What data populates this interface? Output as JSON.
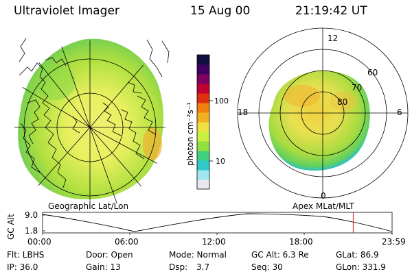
{
  "header": {
    "title": "Ultraviolet Imager",
    "date": "15 Aug 00",
    "time": "21:19:42 UT"
  },
  "colors": {
    "background": "#ffffff",
    "aurora_main": "#a8d63a",
    "aurora_bright": "#f0a020",
    "aurora_dim": "#40c8c8",
    "time_marker": "#d02020"
  },
  "colorbar": {
    "unit_label": "photon cm⁻²s⁻¹",
    "ticks": [
      "100",
      "10"
    ],
    "colors": [
      "#e8e8f0",
      "#a0e8f0",
      "#30c8c8",
      "#40d080",
      "#90e040",
      "#c8f040",
      "#f0e040",
      "#f0b020",
      "#f08010",
      "#e03010",
      "#c00030",
      "#800060",
      "#400060",
      "#101040"
    ]
  },
  "polar_plot": {
    "labels": {
      "top": "12",
      "left": "18",
      "right": "6",
      "bottom": "0"
    },
    "latitudes": [
      "60",
      "70",
      "80"
    ]
  },
  "panel_labels": {
    "left": "Geographic Lat/Lon",
    "right": "Apex MLat/MLT"
  },
  "altitude_plot": {
    "axis_label": "GC Alt",
    "y_ticks": [
      "9.0",
      "1.8"
    ],
    "x_ticks": [
      "00:00",
      "06:00",
      "12:00",
      "18:00",
      "23:59"
    ],
    "marker_time_hours": 21.33
  },
  "info": {
    "row1": {
      "filter": "Flt: LBHS",
      "door": "Door: Open",
      "mode": "Mode: Normal",
      "gc_alt": "GC Alt: 6.3 Re",
      "glat": "GLat:  86.9"
    },
    "row2": {
      "ip": "IP: 36.0",
      "gain": "Gain: 13",
      "dsp_label": "Dsp:",
      "dsp_value": "3.7",
      "seq": "Seq: 30",
      "glon": "GLon: 331.9"
    }
  }
}
